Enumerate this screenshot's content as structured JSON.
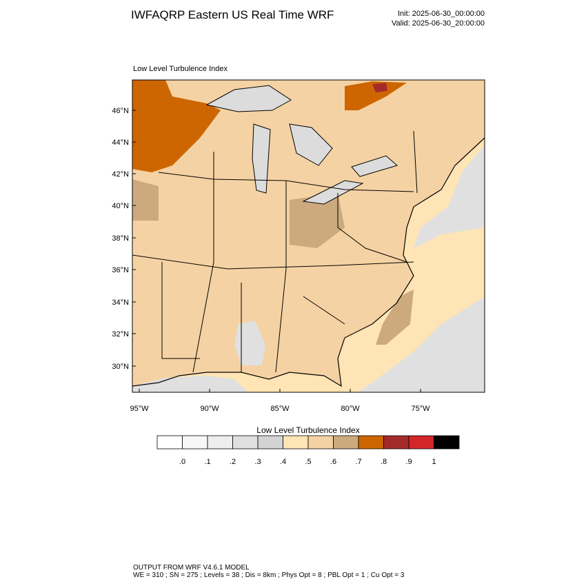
{
  "header": {
    "title": "IWFAQRP Eastern US Real Time WRF",
    "init": "Init: 2025-06-30_00:00:00",
    "valid": "Valid: 2025-06-30_20:00:00"
  },
  "panel": {
    "label": "Low Level Turbulence Index"
  },
  "map": {
    "lat_labels": [
      "46°N",
      "44°N",
      "42°N",
      "40°N",
      "38°N",
      "36°N",
      "34°N",
      "32°N",
      "30°N"
    ],
    "lon_labels": [
      "95°W",
      "90°W",
      "85°W",
      "80°W",
      "75°W"
    ]
  },
  "colorbar": {
    "title": "Low Level Turbulence Index",
    "colors": [
      "#ffffff",
      "#f7f7f7",
      "#eeeeee",
      "#e0e0e0",
      "#d3d3d3",
      "#ffe4b5",
      "#f5d2a3",
      "#cdaa7d",
      "#cd6600",
      "#a52a2a",
      "#d2262a",
      "#000000"
    ],
    "labels": [
      ".0",
      ".1",
      ".2",
      ".3",
      ".4",
      ".5",
      ".6",
      ".7",
      ".8",
      ".9",
      "1"
    ]
  },
  "footer": {
    "line1": "OUTPUT FROM WRF V4.6.1 MODEL",
    "line2": "WE = 310 ; SN = 275 ; Levels = 38 ; Dis = 8km ; Phys Opt = 8 ; PBL Opt = 1 ; Cu Opt = 3"
  }
}
